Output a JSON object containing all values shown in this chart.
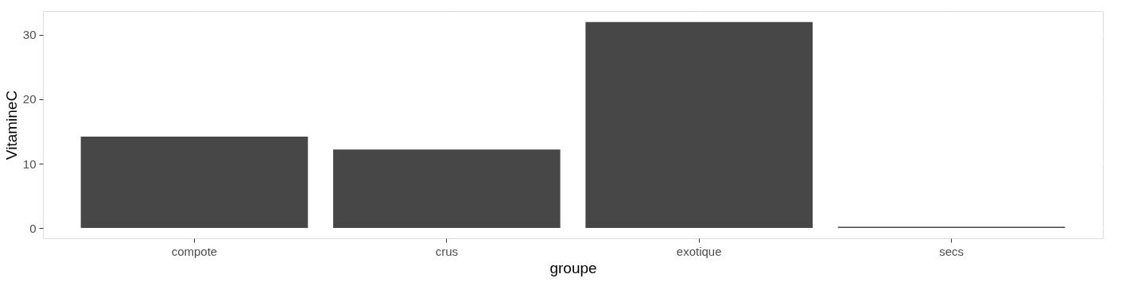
{
  "chart_data": {
    "type": "bar",
    "xlabel": "groupe",
    "ylabel": "VitamineC",
    "categories": [
      "compote",
      "crus",
      "exotique",
      "secs"
    ],
    "values": [
      14.2,
      12.2,
      32.0,
      0.2
    ],
    "color": "#474747",
    "ylim": [
      -1.6,
      33.7
    ],
    "yticks": [
      0,
      10,
      20,
      30
    ],
    "grid": true
  }
}
